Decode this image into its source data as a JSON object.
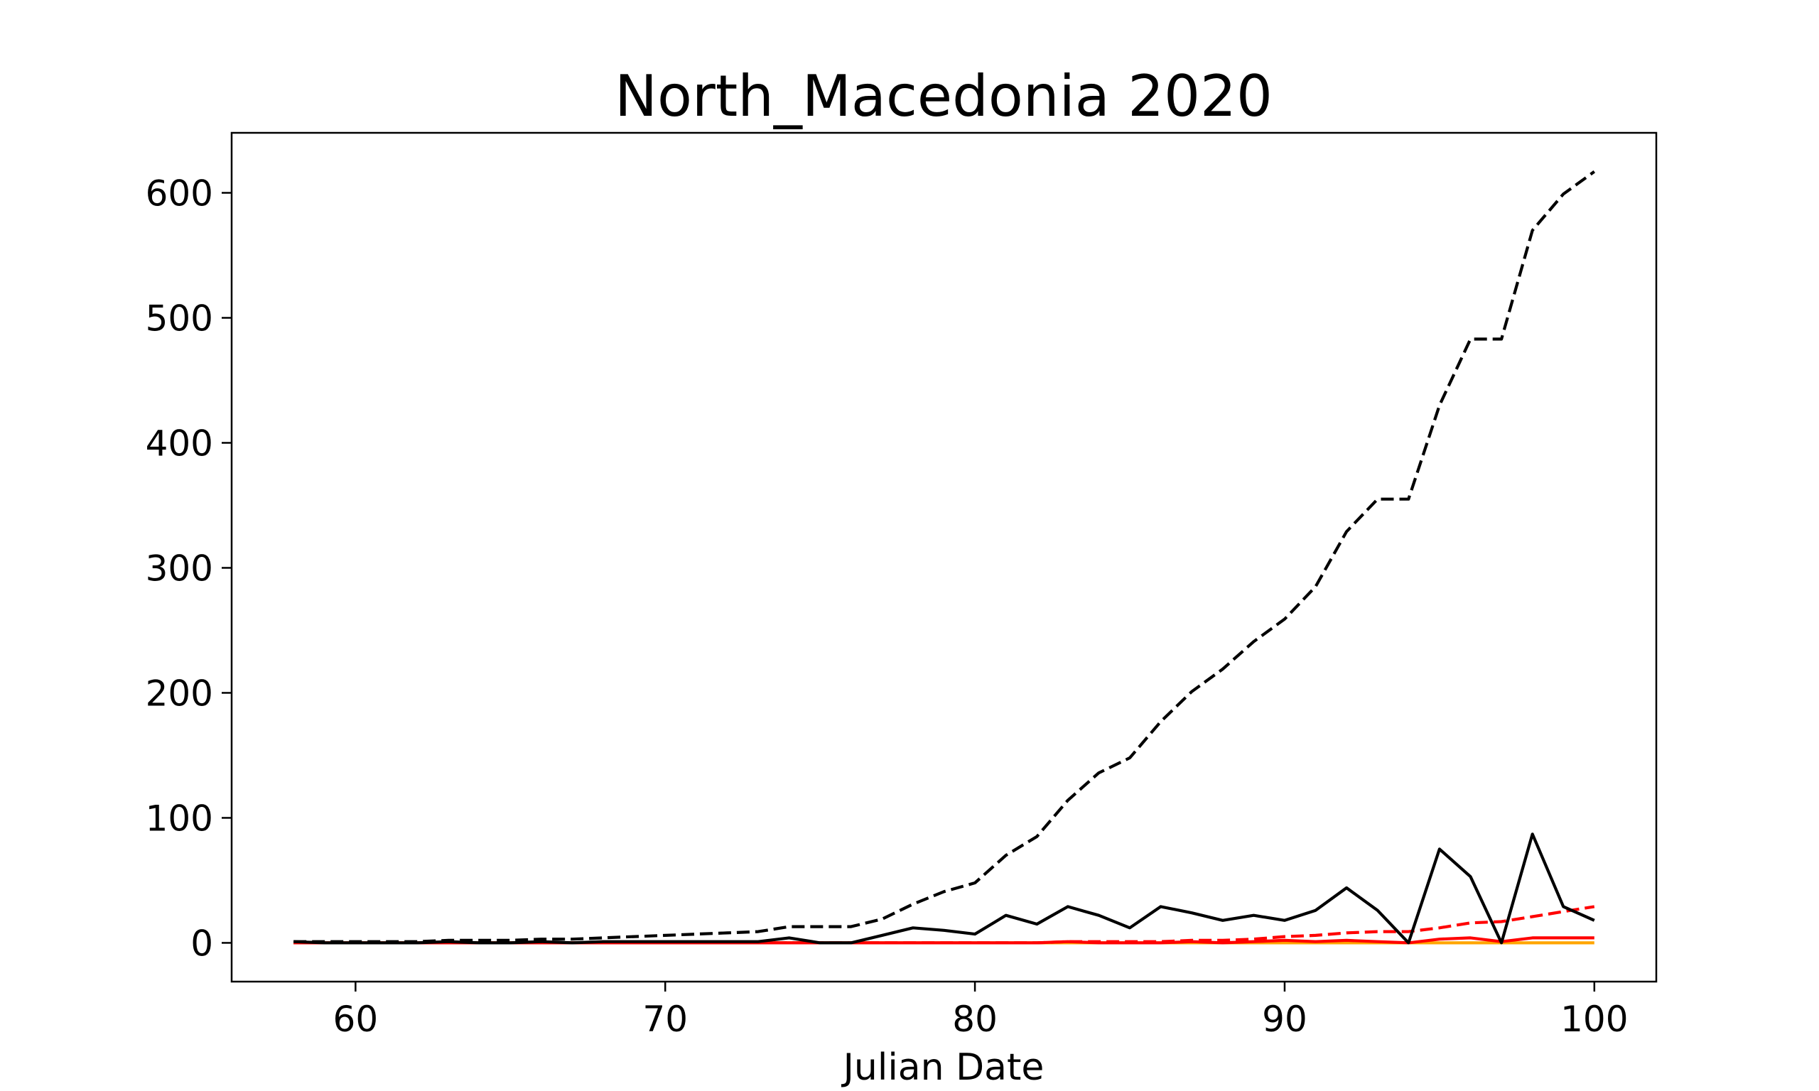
{
  "chart_data": {
    "type": "line",
    "title": "North_Macedonia 2020",
    "xlabel": "Julian Date",
    "ylabel": "",
    "xlim": [
      56,
      102
    ],
    "ylim": [
      -31,
      648
    ],
    "xticks": [
      60,
      70,
      80,
      90,
      100
    ],
    "yticks": [
      0,
      100,
      200,
      300,
      400,
      500,
      600
    ],
    "grid": false,
    "legend": false,
    "x": [
      58,
      59,
      60,
      61,
      62,
      63,
      64,
      65,
      66,
      67,
      68,
      69,
      70,
      71,
      72,
      73,
      74,
      75,
      76,
      77,
      78,
      79,
      80,
      81,
      82,
      83,
      84,
      85,
      86,
      87,
      88,
      89,
      90,
      91,
      92,
      93,
      94,
      95,
      96,
      97,
      98,
      99,
      100
    ],
    "series": [
      {
        "color": "#000000",
        "style": "dashed",
        "values": [
          1,
          1,
          1,
          1,
          1,
          2,
          2,
          2,
          3,
          3,
          4,
          5,
          6,
          7,
          8,
          9,
          13,
          13,
          13,
          19,
          31,
          41,
          48,
          70,
          85,
          114,
          136,
          148,
          177,
          201,
          219,
          241,
          259,
          285,
          329,
          355,
          355,
          430,
          483,
          483,
          570,
          599,
          617
        ]
      },
      {
        "color": "#000000",
        "style": "solid",
        "values": [
          1,
          0,
          0,
          0,
          0,
          1,
          0,
          0,
          1,
          0,
          1,
          1,
          1,
          1,
          1,
          1,
          4,
          0,
          0,
          6,
          12,
          10,
          7,
          22,
          15,
          29,
          22,
          12,
          29,
          24,
          18,
          22,
          18,
          26,
          44,
          26,
          0,
          75,
          53,
          0,
          87,
          29,
          18
        ]
      },
      {
        "color": "#ff0000",
        "style": "dashed",
        "values": [
          0,
          0,
          0,
          0,
          0,
          0,
          0,
          0,
          0,
          0,
          0,
          0,
          0,
          0,
          0,
          0,
          0,
          0,
          0,
          0,
          0,
          0,
          0,
          0,
          0,
          1,
          1,
          1,
          1,
          2,
          2,
          3,
          5,
          6,
          8,
          9,
          9,
          12,
          16,
          17,
          21,
          25,
          29
        ]
      },
      {
        "color": "#ff0000",
        "style": "solid",
        "values": [
          0,
          0,
          0,
          0,
          0,
          0,
          0,
          0,
          0,
          0,
          0,
          0,
          0,
          0,
          0,
          0,
          0,
          0,
          0,
          0,
          0,
          0,
          0,
          0,
          0,
          1,
          0,
          0,
          0,
          1,
          0,
          1,
          2,
          1,
          2,
          1,
          0,
          3,
          4,
          1,
          4,
          4,
          4
        ]
      },
      {
        "color": "#ffa500",
        "style": "solid",
        "values": [
          0,
          0,
          0,
          0,
          0,
          0,
          0,
          0,
          0,
          0,
          0,
          0,
          0,
          0,
          0,
          0,
          0,
          0,
          0,
          0,
          0,
          0,
          0,
          0,
          0,
          0,
          0,
          0,
          0,
          0,
          0,
          0,
          0,
          0,
          0,
          0,
          0,
          0,
          0,
          0,
          0,
          0,
          0
        ]
      }
    ]
  }
}
